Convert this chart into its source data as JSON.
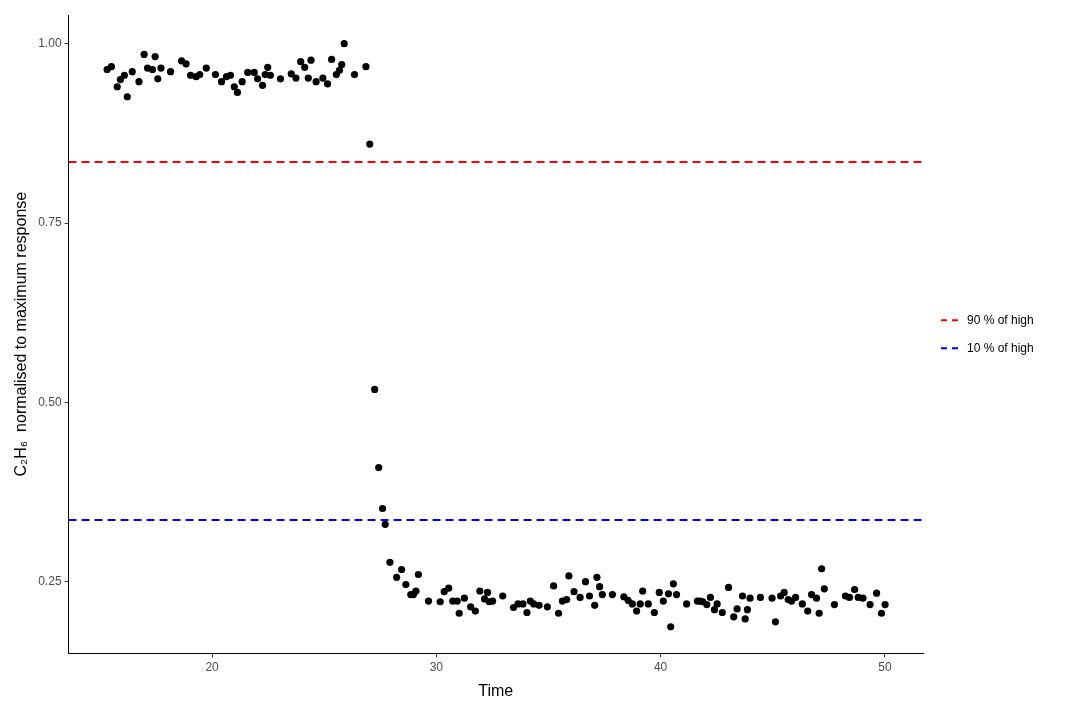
{
  "chart_data": {
    "type": "scatter",
    "xlabel": "Time",
    "ylabel": "C₂H₆  normalised to maximum response",
    "xlim": [
      13.6,
      51.7
    ],
    "ylim": [
      0.15,
      1.04
    ],
    "xticks": [
      20,
      30,
      40,
      50
    ],
    "yticks": [
      0.25,
      {
        "value": 0.5,
        "label": "0.50"
      },
      0.75,
      {
        "value": 1,
        "label": "1.00"
      }
    ],
    "grid": false,
    "legend": "right",
    "marker": "circle",
    "ref_lines": [
      {
        "axis": "y",
        "value": 0.835,
        "label": "90 % of high",
        "color": "#ff0000",
        "line_style": "dashed"
      },
      {
        "axis": "y",
        "value": 0.336,
        "label": "10 % of high",
        "color": "#0000ff",
        "line_style": "dashed"
      }
    ],
    "series": [
      {
        "color": "#000000",
        "x": [
          15.32,
          15.51,
          15.77,
          15.91,
          16.09,
          16.22,
          16.44,
          16.74,
          16.97,
          17.12,
          17.34,
          17.46,
          17.58,
          17.72,
          18.15,
          18.64,
          18.84,
          19.04,
          19.29,
          19.45,
          19.74,
          20.15,
          20.42,
          20.64,
          20.82,
          20.99,
          21.13,
          21.34,
          21.59,
          21.88,
          22.03,
          22.25,
          22.37,
          22.48,
          22.6,
          23.05,
          23.53,
          23.74,
          23.95,
          24.13,
          24.41,
          24.29,
          24.64,
          24.94,
          25.15,
          25.33,
          25.54,
          25.68,
          25.78,
          25.89,
          26.35,
          26.86,
          27.03,
          27.25,
          27.43,
          27.6,
          27.72,
          27.93,
          28.23,
          28.45,
          28.64,
          28.86,
          28.98,
          29.09,
          29.2,
          29.65,
          30.17,
          30.35,
          30.55,
          30.73,
          30.93,
          31.02,
          31.25,
          31.53,
          31.74,
          31.94,
          32.15,
          32.28,
          32.36,
          32.51,
          32.96,
          33.44,
          33.64,
          33.86,
          34.04,
          34.19,
          34.34,
          34.58,
          34.95,
          35.23,
          35.45,
          35.62,
          35.81,
          35.91,
          36.14,
          36.41,
          36.65,
          36.83,
          37.06,
          37.16,
          37.28,
          37.4,
          37.85,
          38.36,
          38.55,
          38.74,
          38.93,
          39.09,
          39.2,
          39.45,
          39.72,
          39.94,
          40.12,
          40.35,
          40.45,
          40.57,
          40.71,
          41.16,
          41.64,
          41.76,
          41.88,
          42.06,
          42.22,
          42.4,
          42.52,
          42.75,
          43.03,
          43.26,
          43.41,
          43.65,
          43.77,
          43.87,
          43.99,
          44.45,
          44.97,
          45.12,
          45.35,
          45.51,
          45.69,
          45.84,
          46.02,
          46.32,
          46.56,
          46.73,
          46.95,
          47.07,
          47.18,
          47.3,
          47.75,
          48.24,
          48.42,
          48.65,
          48.81,
          49.02,
          49.34,
          49.63,
          49.85,
          50.01
        ],
        "values": [
          0.964,
          0.968,
          0.94,
          0.95,
          0.956,
          0.926,
          0.961,
          0.947,
          0.985,
          0.966,
          0.964,
          0.982,
          0.951,
          0.966,
          0.961,
          0.976,
          0.972,
          0.956,
          0.954,
          0.957,
          0.966,
          0.957,
          0.947,
          0.954,
          0.956,
          0.94,
          0.932,
          0.947,
          0.96,
          0.96,
          0.951,
          0.942,
          0.957,
          0.967,
          0.956,
          0.951,
          0.958,
          0.952,
          0.975,
          0.967,
          0.977,
          0.952,
          0.947,
          0.952,
          0.944,
          0.978,
          0.957,
          0.963,
          0.971,
          1.0,
          0.957,
          0.968,
          0.86,
          0.518,
          0.409,
          0.352,
          0.33,
          0.277,
          0.256,
          0.267,
          0.246,
          0.232,
          0.232,
          0.237,
          0.26,
          0.223,
          0.222,
          0.236,
          0.241,
          0.223,
          0.223,
          0.206,
          0.227,
          0.215,
          0.209,
          0.237,
          0.226,
          0.235,
          0.222,
          0.223,
          0.23,
          0.214,
          0.219,
          0.219,
          0.207,
          0.223,
          0.219,
          0.217,
          0.215,
          0.244,
          0.206,
          0.223,
          0.225,
          0.258,
          0.236,
          0.228,
          0.25,
          0.23,
          0.217,
          0.256,
          0.243,
          0.232,
          0.232,
          0.229,
          0.224,
          0.219,
          0.209,
          0.219,
          0.237,
          0.219,
          0.207,
          0.235,
          0.223,
          0.233,
          0.187,
          0.247,
          0.232,
          0.219,
          0.223,
          0.223,
          0.222,
          0.218,
          0.228,
          0.211,
          0.219,
          0.207,
          0.242,
          0.201,
          0.212,
          0.23,
          0.198,
          0.211,
          0.227,
          0.228,
          0.227,
          0.194,
          0.23,
          0.235,
          0.225,
          0.223,
          0.228,
          0.219,
          0.209,
          0.232,
          0.227,
          0.206,
          0.268,
          0.24,
          0.218,
          0.23,
          0.228,
          0.239,
          0.228,
          0.227,
          0.218,
          0.234,
          0.206,
          0.218
        ]
      }
    ]
  }
}
